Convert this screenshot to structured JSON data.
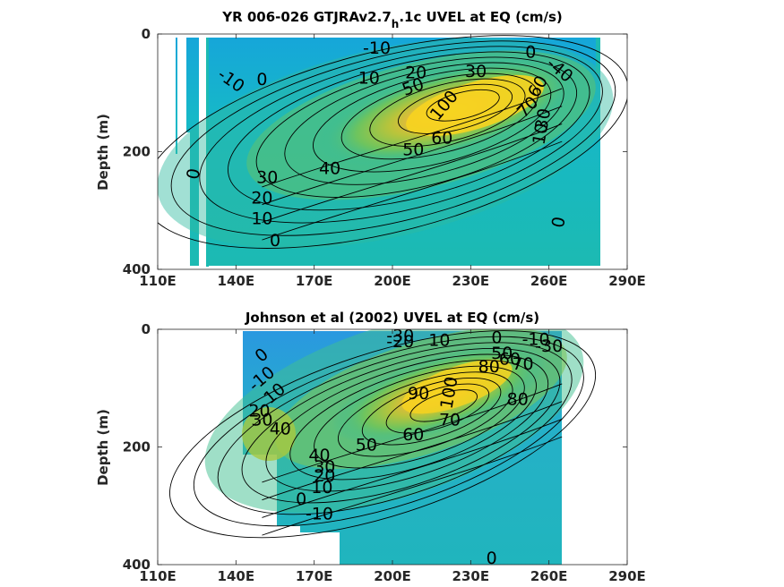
{
  "chart_data": [
    {
      "type": "contour",
      "title": "YR 006-026 GTJRAv2.7",
      "title_subscript": "h",
      "title_suffix": ".1c UVEL at EQ (cm/s)",
      "ylabel": "Depth (m)",
      "xlabel": "",
      "xlim": [
        110,
        290
      ],
      "ylim": [
        0,
        400
      ],
      "y_reversed": true,
      "x_ticks": [
        "110E",
        "140E",
        "170E",
        "200E",
        "230E",
        "260E",
        "290E"
      ],
      "y_ticks": [
        "0",
        "200",
        "400"
      ],
      "data_extent": {
        "x": [
          117,
          280
        ],
        "y": [
          0,
          400
        ]
      },
      "core": {
        "lon": 230,
        "depth": 115,
        "max": 100
      },
      "contour_labels": [
        {
          "text": "-10",
          "lon": 138,
          "depth": 80,
          "rot": 35
        },
        {
          "text": "0",
          "lon": 150,
          "depth": 78,
          "rot": 0
        },
        {
          "text": "-10",
          "lon": 194,
          "depth": 25,
          "rot": 0
        },
        {
          "text": "10",
          "lon": 191,
          "depth": 76,
          "rot": 0
        },
        {
          "text": "20",
          "lon": 209,
          "depth": 67,
          "rot": 0
        },
        {
          "text": "30",
          "lon": 232,
          "depth": 65,
          "rot": 0
        },
        {
          "text": "50",
          "lon": 208,
          "depth": 91,
          "rot": -20
        },
        {
          "text": "0",
          "lon": 253,
          "depth": 32,
          "rot": 0
        },
        {
          "text": "-40",
          "lon": 264,
          "depth": 62,
          "rot": 40
        },
        {
          "text": "70",
          "lon": 252,
          "depth": 125,
          "rot": -45
        },
        {
          "text": "60",
          "lon": 256,
          "depth": 90,
          "rot": -60
        },
        {
          "text": "30",
          "lon": 258,
          "depth": 145,
          "rot": -80
        },
        {
          "text": "10",
          "lon": 257,
          "depth": 170,
          "rot": -80
        },
        {
          "text": "60",
          "lon": 219,
          "depth": 178,
          "rot": 0
        },
        {
          "text": "50",
          "lon": 208,
          "depth": 198,
          "rot": 0
        },
        {
          "text": "40",
          "lon": 176,
          "depth": 230,
          "rot": 0
        },
        {
          "text": "30",
          "lon": 152,
          "depth": 245,
          "rot": 0
        },
        {
          "text": "20",
          "lon": 150,
          "depth": 280,
          "rot": 0
        },
        {
          "text": "10",
          "lon": 150,
          "depth": 315,
          "rot": 0
        },
        {
          "text": "0",
          "lon": 155,
          "depth": 352,
          "rot": 0
        },
        {
          "text": "0",
          "lon": 124,
          "depth": 238,
          "rot": -80
        },
        {
          "text": "0",
          "lon": 264,
          "depth": 320,
          "rot": -80
        },
        {
          "text": "100",
          "lon": 220,
          "depth": 122,
          "rot": -50
        }
      ]
    },
    {
      "type": "contour",
      "title": "Johnson et al (2002) UVEL at EQ (cm/s)",
      "ylabel": "Depth (m)",
      "xlabel": "",
      "xlim": [
        110,
        290
      ],
      "ylim": [
        0,
        400
      ],
      "y_reversed": true,
      "x_ticks": [
        "110E",
        "140E",
        "170E",
        "200E",
        "230E",
        "260E",
        "290E"
      ],
      "y_ticks": [
        "0",
        "200",
        "400"
      ],
      "data_extent": {
        "x": [
          143,
          266
        ],
        "y": [
          0,
          400
        ]
      },
      "core": {
        "lon": 222,
        "depth": 125,
        "max": 100
      },
      "contour_labels": [
        {
          "text": "-30",
          "lon": 203,
          "depth": 12,
          "rot": 0
        },
        {
          "text": "-20",
          "lon": 203,
          "depth": 22,
          "rot": 0
        },
        {
          "text": "10",
          "lon": 218,
          "depth": 20,
          "rot": 0
        },
        {
          "text": "0",
          "lon": 240,
          "depth": 15,
          "rot": 0
        },
        {
          "text": "-10",
          "lon": 255,
          "depth": 18,
          "rot": 0
        },
        {
          "text": "-30",
          "lon": 260,
          "depth": 30,
          "rot": 0
        },
        {
          "text": "50",
          "lon": 242,
          "depth": 42,
          "rot": 0
        },
        {
          "text": "60",
          "lon": 245,
          "depth": 52,
          "rot": 0
        },
        {
          "text": "70",
          "lon": 250,
          "depth": 60,
          "rot": 0
        },
        {
          "text": "80",
          "lon": 237,
          "depth": 65,
          "rot": 0
        },
        {
          "text": "80",
          "lon": 248,
          "depth": 120,
          "rot": 0
        },
        {
          "text": "90",
          "lon": 210,
          "depth": 110,
          "rot": 0
        },
        {
          "text": "100",
          "lon": 222,
          "depth": 108,
          "rot": -80
        },
        {
          "text": "70",
          "lon": 222,
          "depth": 155,
          "rot": 0
        },
        {
          "text": "60",
          "lon": 208,
          "depth": 180,
          "rot": 0
        },
        {
          "text": "50",
          "lon": 190,
          "depth": 198,
          "rot": 0
        },
        {
          "text": "0",
          "lon": 150,
          "depth": 45,
          "rot": -40
        },
        {
          "text": "-10",
          "lon": 150,
          "depth": 85,
          "rot": -40
        },
        {
          "text": "10",
          "lon": 155,
          "depth": 110,
          "rot": -40
        },
        {
          "text": "20",
          "lon": 149,
          "depth": 140,
          "rot": 0
        },
        {
          "text": "30",
          "lon": 150,
          "depth": 155,
          "rot": 0
        },
        {
          "text": "40",
          "lon": 157,
          "depth": 170,
          "rot": 0
        },
        {
          "text": "40",
          "lon": 172,
          "depth": 215,
          "rot": 0
        },
        {
          "text": "30",
          "lon": 174,
          "depth": 235,
          "rot": 0
        },
        {
          "text": "20",
          "lon": 174,
          "depth": 250,
          "rot": 0
        },
        {
          "text": "10",
          "lon": 173,
          "depth": 270,
          "rot": 0
        },
        {
          "text": "0",
          "lon": 165,
          "depth": 290,
          "rot": 0
        },
        {
          "text": "-10",
          "lon": 172,
          "depth": 315,
          "rot": 0
        },
        {
          "text": "0",
          "lon": 238,
          "depth": 390,
          "rot": 0
        }
      ]
    }
  ]
}
